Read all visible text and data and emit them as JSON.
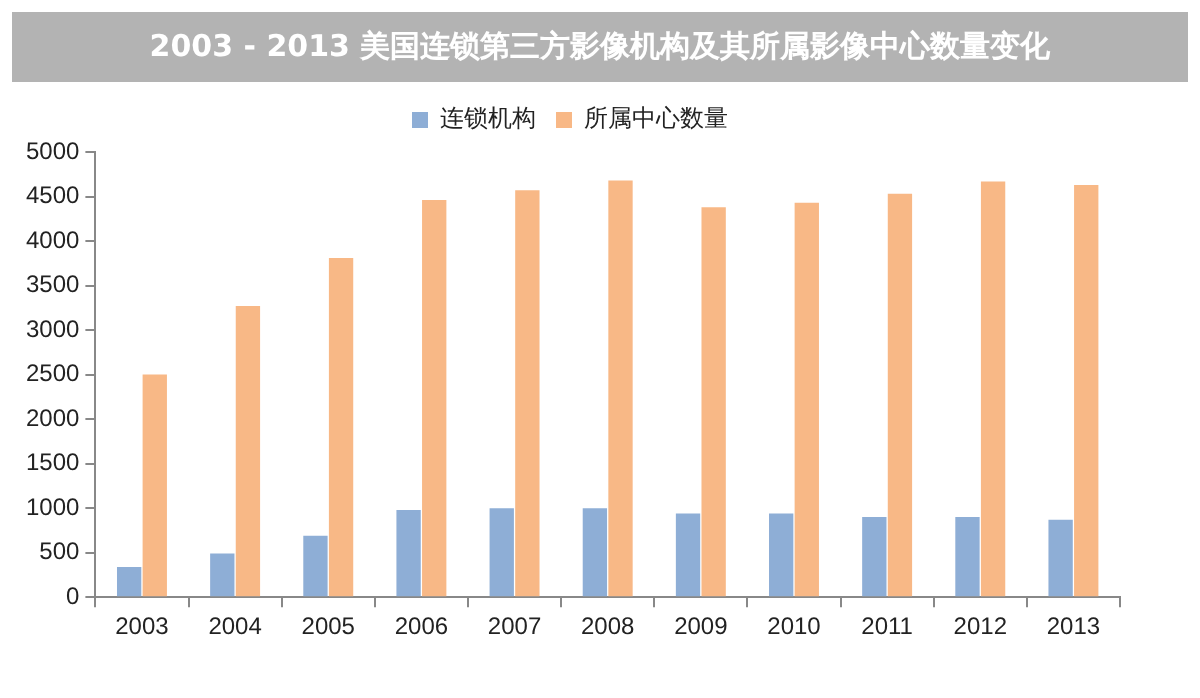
{
  "chart_data": {
    "type": "bar",
    "title": "2003 - 2013 美国连锁第三方影像机构及其所属影像中心数量变化",
    "categories": [
      "2003",
      "2004",
      "2005",
      "2006",
      "2007",
      "2008",
      "2009",
      "2010",
      "2011",
      "2012",
      "2013"
    ],
    "series": [
      {
        "name": "连锁机构",
        "color": "#8eaed6",
        "values": [
          340,
          490,
          690,
          980,
          1000,
          1000,
          940,
          940,
          900,
          900,
          870
        ]
      },
      {
        "name": "所属中心数量",
        "color": "#f8b886",
        "values": [
          2500,
          3270,
          3810,
          4460,
          4570,
          4680,
          4380,
          4430,
          4530,
          4670,
          4630
        ]
      }
    ],
    "ylim": [
      0,
      5000
    ],
    "yticks": [
      0,
      500,
      1000,
      1500,
      2000,
      2500,
      3000,
      3500,
      4000,
      4500,
      5000
    ],
    "grid": false,
    "legend": "top"
  }
}
